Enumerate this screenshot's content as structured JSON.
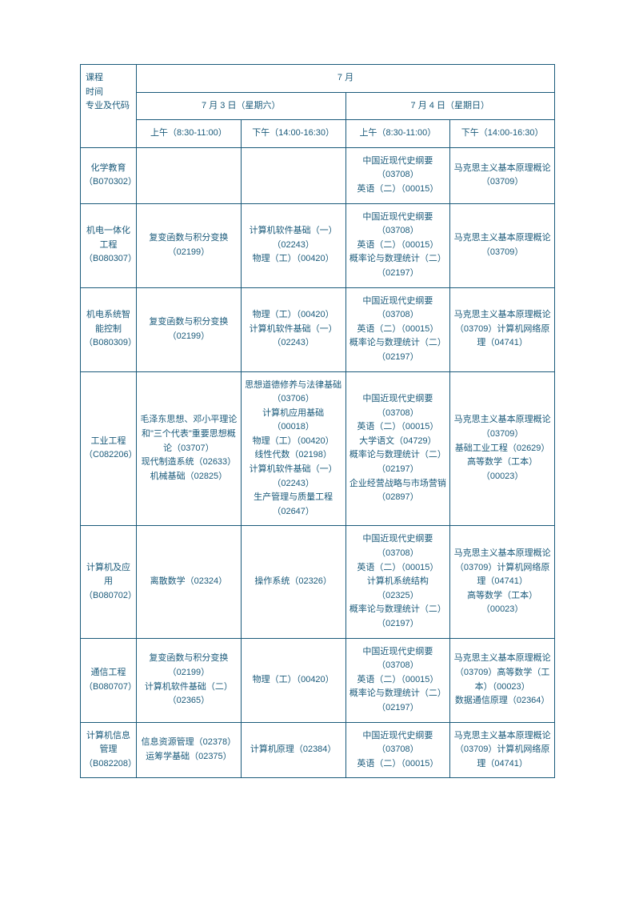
{
  "colors": {
    "border": "#1a5a7a",
    "text": "#1a5a7a",
    "background": "#ffffff"
  },
  "typography": {
    "fontSize": 11,
    "lineHeight": 1.6
  },
  "header": {
    "spec_label_l1": "课程",
    "spec_label_l2": "时间",
    "spec_label_l3": "专业及代码",
    "month": "7 月",
    "day1": "7 月 3 日（星期六）",
    "day2": "7 月 4 日（星期日）",
    "d1morning": "上午（8:30-11:00）",
    "d1afternoon": "下午（14:00-16:30）",
    "d2morning": "上午（8:30-11:00）",
    "d2afternoon": "下午（14:00-16:30）"
  },
  "rows": [
    {
      "spec": "化学教育（B070302）",
      "c1": "",
      "c2": "",
      "c3": "中国近现代史纲要（03708）\n英语（二）（00015）",
      "c4": "马克思主义基本原理概论（03709）"
    },
    {
      "spec": "机电一体化工程（B080307）",
      "c1": "复变函数与积分变换（02199）",
      "c2": "计算机软件基础（一）（02243）\n物理（工）（00420）",
      "c3": "中国近现代史纲要（03708）\n英语（二）（00015）\n概率论与数理统计（二）（02197）",
      "c4": "马克思主义基本原理概论（03709）"
    },
    {
      "spec": "机电系统智能控制（B080309）",
      "c1": "复变函数与积分变换（02199）",
      "c2": "物理（工）（00420）\n计算机软件基础（一）（02243）",
      "c3": "中国近现代史纲要（03708）\n英语（二）（00015）\n概率论与数理统计（二）（02197）",
      "c4": "马克思主义基本原理概论（03709）计算机网络原理（04741）"
    },
    {
      "spec": "工业工程（C082206）",
      "c1": "毛泽东思想、邓小平理论和\"三个代表\"重要思想概论（03707）\n现代制造系统（02633）\n机械基础（02825）",
      "c2": "思想道德修养与法律基础（03706）\n计算机应用基础（00018）\n物理（工）（00420）\n线性代数（02198）\n计算机软件基础（一）（02243）\n生产管理与质量工程（02647）",
      "c3": "中国近现代史纲要（03708）\n英语（二）（00015）\n大学语文（04729）\n概率论与数理统计（二）（02197）\n企业经营战略与市场营销（02897）",
      "c4": "马克思主义基本原理概论（03709）\n基础工业工程（02629）\n高等数学（工本）（00023）"
    },
    {
      "spec": "计算机及应用（B080702）",
      "c1": "离散数学（02324）",
      "c2": "操作系统（02326）",
      "c3": "中国近现代史纲要（03708）\n英语（二）（00015）\n计算机系统结构（02325）\n概率论与数理统计（二）（02197）",
      "c4": "马克思主义基本原理概论（03709）计算机网络原理（04741）\n高等数学（工本）（00023）"
    },
    {
      "spec": "通信工程（B080707）",
      "c1": "复变函数与积分变换（02199）\n计算机软件基础（二）（02365）",
      "c2": "物理（工）（00420）",
      "c3": "中国近现代史纲要（03708）\n英语（二）（00015）\n概率论与数理统计（二）（02197）",
      "c4": "马克思主义基本原理概论（03709）高等数学（工本）（00023）\n数据通信原理（02364）"
    },
    {
      "spec": "计算机信息管理（B082208）",
      "c1": "信息资源管理（02378）\n运筹学基础（02375）",
      "c2": "计算机原理（02384）",
      "c3": "中国近现代史纲要（03708）\n英语（二）（00015）",
      "c4": "马克思主义基本原理概论（03709）计算机网络原理（04741）"
    }
  ]
}
